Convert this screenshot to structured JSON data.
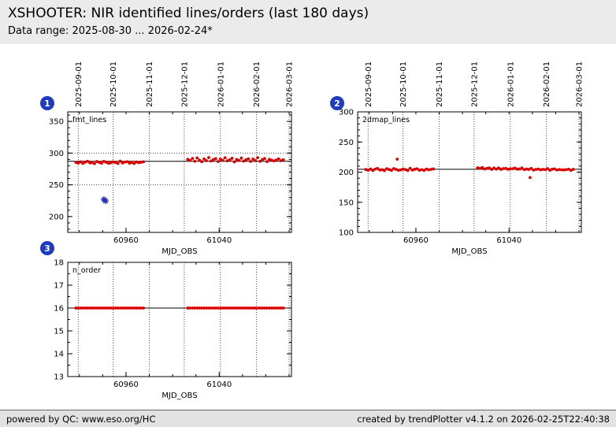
{
  "header": {
    "title": "XSHOOTER: NIR identified lines/orders (last 180 days)",
    "subtitle": "Data range: 2025-08-30 ... 2026-02-24*"
  },
  "footer": {
    "left": "powered by QC: www.eso.org/HC",
    "right": "created by trendPlotter v4.1.2 on 2026-02-25T22:40:38"
  },
  "colors": {
    "point": "#dd0000",
    "outlier": "#2a2ab8",
    "badge": "#1f3bbf",
    "mean_line": "#000000"
  },
  "chart_data": [
    {
      "type": "scatter",
      "badge": "1",
      "label": "fmt_lines",
      "xlabel": "MJD_OBS",
      "x_range": [
        60910,
        61102
      ],
      "y_range": [
        175,
        365
      ],
      "x_major_ticks": [
        60960,
        61040
      ],
      "x_minor_step": 20,
      "y_major_ticks": [
        200,
        250,
        300,
        350
      ],
      "y_minor_step": 10,
      "show_date_labels": true,
      "date_ticks": [
        {
          "label": "2025-09-01",
          "mjd": 60919
        },
        {
          "label": "2025-10-01",
          "mjd": 60949
        },
        {
          "label": "2025-11-01",
          "mjd": 60980
        },
        {
          "label": "2025-12-01",
          "mjd": 61010
        },
        {
          "label": "2026-01-01",
          "mjd": 61041
        },
        {
          "label": "2026-02-01",
          "mjd": 61072
        },
        {
          "label": "2026-03-01",
          "mjd": 61100
        }
      ],
      "mean_line": 287,
      "dotted_hlines": [
        250,
        300
      ],
      "series": [
        {
          "name": "fmt_lines",
          "color": "#dd0000",
          "marker": "dot",
          "x": [
            60917,
            60919,
            60921,
            60923,
            60925,
            60927,
            60929,
            60931,
            60933,
            60935,
            60937,
            60939,
            60941,
            60943,
            60945,
            60947,
            60949,
            60951,
            60953,
            60955,
            60957,
            60959,
            60961,
            60963,
            60965,
            60967,
            60969,
            60971,
            60973,
            60975,
            61013,
            61015,
            61017,
            61019,
            61021,
            61023,
            61025,
            61027,
            61029,
            61031,
            61033,
            61035,
            61037,
            61039,
            61041,
            61043,
            61045,
            61047,
            61049,
            61051,
            61053,
            61055,
            61057,
            61059,
            61061,
            61063,
            61065,
            61067,
            61069,
            61071,
            61073,
            61075,
            61077,
            61079,
            61081,
            61083,
            61085,
            61087,
            61089,
            61091,
            61093,
            61095
          ],
          "y": [
            285.4,
            284.1,
            286.2,
            283.8,
            285.9,
            287.1,
            284.6,
            285.0,
            283.5,
            286.7,
            285.3,
            284.0,
            286.9,
            285.6,
            283.9,
            284.8,
            286.1,
            285.2,
            283.6,
            287.3,
            284.4,
            285.8,
            286.5,
            284.2,
            285.1,
            283.7,
            286.0,
            284.9,
            285.5,
            286.3,
            290.1,
            288.4,
            291.6,
            287.2,
            292.3,
            289.0,
            286.5,
            290.8,
            288.1,
            293.0,
            287.6,
            289.9,
            291.2,
            286.8,
            290.4,
            288.7,
            292.6,
            287.9,
            289.3,
            291.8,
            286.2,
            290.0,
            288.5,
            292.1,
            287.4,
            289.6,
            291.0,
            286.9,
            290.6,
            288.2,
            292.8,
            287.1,
            289.8,
            291.4,
            286.6,
            290.2,
            288.9,
            287.7,
            289.1,
            290.9,
            288.0,
            289.5
          ]
        }
      ],
      "outliers": [
        {
          "x": 60941,
          "y": 227.0,
          "marker": "asterisk",
          "color": "#2a2ab8"
        },
        {
          "x": 60942.5,
          "y": 224.5,
          "marker": "asterisk",
          "color": "#2a2ab8"
        }
      ]
    },
    {
      "type": "scatter",
      "badge": "2",
      "label": "2dmap_lines",
      "xlabel": "MJD_OBS",
      "x_range": [
        60910,
        61102
      ],
      "y_range": [
        100,
        300
      ],
      "x_major_ticks": [
        60960,
        61040
      ],
      "x_minor_step": 20,
      "y_major_ticks": [
        100,
        150,
        200,
        250,
        300
      ],
      "y_minor_step": 10,
      "show_date_labels": true,
      "date_ticks": [
        {
          "label": "2025-09-01",
          "mjd": 60919
        },
        {
          "label": "2025-10-01",
          "mjd": 60949
        },
        {
          "label": "2025-11-01",
          "mjd": 60980
        },
        {
          "label": "2025-12-01",
          "mjd": 61010
        },
        {
          "label": "2026-01-01",
          "mjd": 61041
        },
        {
          "label": "2026-02-01",
          "mjd": 61072
        },
        {
          "label": "2026-03-01",
          "mjd": 61100
        }
      ],
      "mean_line": 204.8,
      "dotted_hlines": [],
      "series": [
        {
          "name": "2dmap_lines",
          "color": "#dd0000",
          "marker": "dot",
          "x": [
            60917,
            60919,
            60921,
            60923,
            60925,
            60927,
            60929,
            60931,
            60933,
            60935,
            60937,
            60939,
            60941,
            60943,
            60945,
            60947,
            60949,
            60951,
            60953,
            60955,
            60957,
            60959,
            60961,
            60963,
            60965,
            60967,
            60969,
            60971,
            60973,
            60975,
            61013,
            61015,
            61017,
            61019,
            61021,
            61023,
            61025,
            61027,
            61029,
            61031,
            61033,
            61035,
            61037,
            61039,
            61041,
            61043,
            61045,
            61047,
            61049,
            61051,
            61053,
            61055,
            61057,
            61059,
            61061,
            61063,
            61065,
            61067,
            61069,
            61071,
            61073,
            61075,
            61077,
            61079,
            61081,
            61083,
            61085,
            61087,
            61089,
            61091,
            61093,
            61095,
            60944,
            61058
          ],
          "y": [
            204.3,
            203.1,
            205.2,
            202.8,
            204.9,
            206.1,
            203.6,
            204.0,
            202.5,
            205.7,
            204.3,
            203.0,
            205.9,
            204.6,
            202.9,
            203.8,
            205.1,
            204.2,
            202.6,
            206.3,
            203.4,
            204.8,
            205.5,
            203.2,
            204.1,
            202.7,
            205.0,
            203.9,
            204.5,
            205.3,
            207.1,
            206.4,
            207.6,
            205.2,
            206.3,
            207.0,
            204.5,
            206.8,
            205.1,
            207.0,
            204.6,
            205.9,
            206.2,
            204.8,
            205.4,
            205.7,
            206.6,
            204.9,
            205.3,
            206.8,
            204.2,
            205.0,
            204.5,
            206.1,
            203.4,
            204.6,
            205.0,
            203.9,
            204.6,
            204.2,
            205.8,
            203.1,
            204.8,
            205.4,
            203.6,
            204.2,
            203.9,
            203.7,
            204.1,
            204.9,
            203.0,
            204.5,
            221.5,
            191.0
          ]
        }
      ],
      "outliers": []
    },
    {
      "type": "scatter",
      "badge": "3",
      "label": "n_order",
      "xlabel": "MJD_OBS",
      "x_range": [
        60910,
        61102
      ],
      "y_range": [
        13,
        18
      ],
      "x_major_ticks": [
        60960,
        61040
      ],
      "x_minor_step": 20,
      "y_major_ticks": [
        13,
        14,
        15,
        16,
        17,
        18
      ],
      "y_minor_step": 0.5,
      "show_date_labels": false,
      "date_ticks": [
        {
          "label": "2025-09-01",
          "mjd": 60919
        },
        {
          "label": "2025-10-01",
          "mjd": 60949
        },
        {
          "label": "2025-11-01",
          "mjd": 60980
        },
        {
          "label": "2025-12-01",
          "mjd": 61010
        },
        {
          "label": "2026-01-01",
          "mjd": 61041
        },
        {
          "label": "2026-02-01",
          "mjd": 61072
        },
        {
          "label": "2026-03-01",
          "mjd": 61100
        }
      ],
      "mean_line": 16,
      "dotted_hlines": [],
      "series": [
        {
          "name": "n_order",
          "color": "#dd0000",
          "marker": "dot",
          "x": [
            60917,
            60919,
            60921,
            60923,
            60925,
            60927,
            60929,
            60931,
            60933,
            60935,
            60937,
            60939,
            60941,
            60943,
            60945,
            60947,
            60949,
            60951,
            60953,
            60955,
            60957,
            60959,
            60961,
            60963,
            60965,
            60967,
            60969,
            60971,
            60973,
            60975,
            61013,
            61015,
            61017,
            61019,
            61021,
            61023,
            61025,
            61027,
            61029,
            61031,
            61033,
            61035,
            61037,
            61039,
            61041,
            61043,
            61045,
            61047,
            61049,
            61051,
            61053,
            61055,
            61057,
            61059,
            61061,
            61063,
            61065,
            61067,
            61069,
            61071,
            61073,
            61075,
            61077,
            61079,
            61081,
            61083,
            61085,
            61087,
            61089,
            61091,
            61093,
            61095
          ],
          "y_const": 16
        }
      ],
      "outliers": []
    }
  ]
}
